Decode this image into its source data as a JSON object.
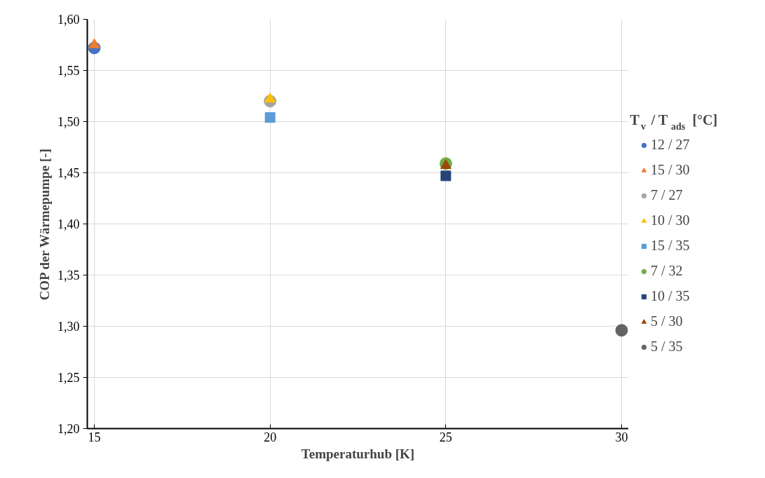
{
  "chart_data": {
    "type": "scatter",
    "xlabel": "Temperaturhub [K]",
    "ylabel": "COP der Wärmepumpe [-]",
    "legend_title": "T$_{v}$ / T$_{ads}$ [°C]",
    "xlim": [
      15,
      30
    ],
    "xticks": [
      15,
      20,
      25,
      30
    ],
    "ylim": [
      1.2,
      1.6
    ],
    "yticks": [
      {
        "value": 1.2,
        "label": "1,20"
      },
      {
        "value": 1.25,
        "label": "1,25"
      },
      {
        "value": 1.3,
        "label": "1,30"
      },
      {
        "value": 1.35,
        "label": "1,35"
      },
      {
        "value": 1.4,
        "label": "1,40"
      },
      {
        "value": 1.45,
        "label": "1,45"
      },
      {
        "value": 1.5,
        "label": "1,50"
      },
      {
        "value": 1.55,
        "label": "1,55"
      },
      {
        "value": 1.6,
        "label": "1,60"
      }
    ],
    "grid": true,
    "legend": "right",
    "series": [
      {
        "name": "12 / 27",
        "color": "#4472c4",
        "marker": "circle",
        "x": [
          15
        ],
        "values": [
          1.572
        ]
      },
      {
        "name": "15 / 30",
        "color": "#ed7d31",
        "marker": "triangle",
        "x": [
          15
        ],
        "values": [
          1.575
        ]
      },
      {
        "name": "7 / 27",
        "color": "#a5a5a5",
        "marker": "circle",
        "x": [
          20
        ],
        "values": [
          1.52
        ]
      },
      {
        "name": "10 / 30",
        "color": "#ffc000",
        "marker": "triangle",
        "x": [
          20
        ],
        "values": [
          1.522
        ]
      },
      {
        "name": "15 / 35",
        "color": "#5b9bd5",
        "marker": "square",
        "x": [
          20
        ],
        "values": [
          1.504
        ]
      },
      {
        "name": "7 / 32",
        "color": "#70ad47",
        "marker": "circle",
        "x": [
          25
        ],
        "values": [
          1.459
        ]
      },
      {
        "name": "10 / 35",
        "color": "#264478",
        "marker": "square",
        "x": [
          25
        ],
        "values": [
          1.447
        ]
      },
      {
        "name": "5 / 30",
        "color": "#9e480e",
        "marker": "triangle",
        "x": [
          25
        ],
        "values": [
          1.457
        ]
      },
      {
        "name": "5 / 35",
        "color": "#636363",
        "marker": "circle",
        "x": [
          30
        ],
        "values": [
          1.296
        ]
      }
    ]
  }
}
